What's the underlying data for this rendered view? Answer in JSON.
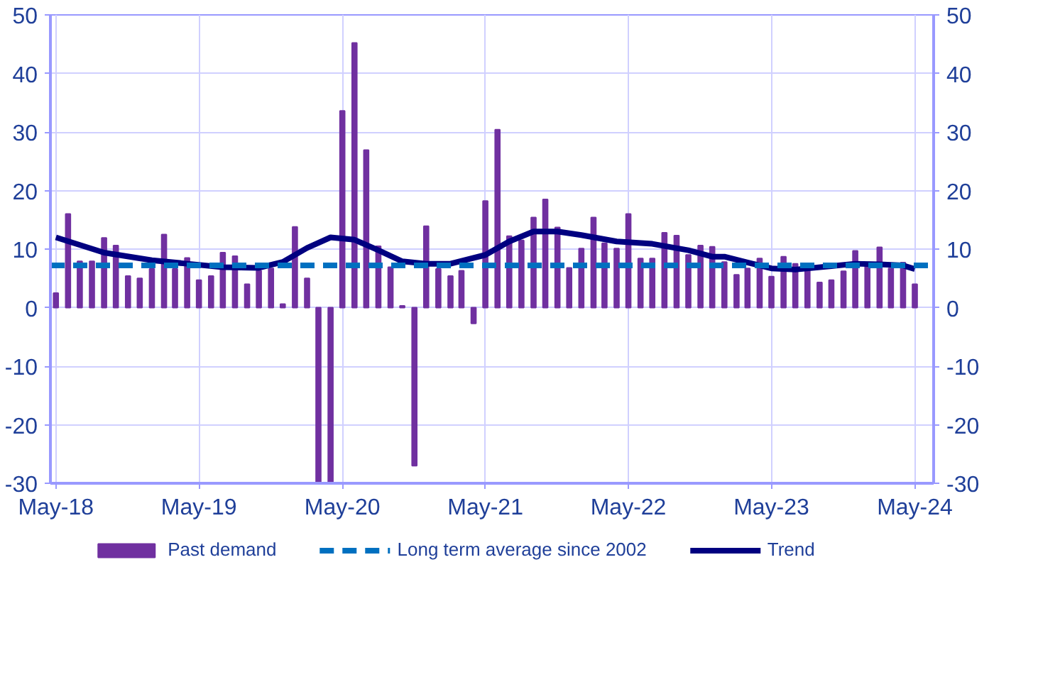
{
  "chart_data": {
    "type": "bar",
    "x": [
      "2018-05",
      "2018-06",
      "2018-07",
      "2018-08",
      "2018-09",
      "2018-10",
      "2018-11",
      "2018-12",
      "2019-01",
      "2019-02",
      "2019-03",
      "2019-04",
      "2019-05",
      "2019-06",
      "2019-07",
      "2019-08",
      "2019-09",
      "2019-10",
      "2019-11",
      "2019-12",
      "2020-01",
      "2020-02",
      "2020-03",
      "2020-04",
      "2020-05",
      "2020-06",
      "2020-07",
      "2020-08",
      "2020-09",
      "2020-10",
      "2020-11",
      "2020-12",
      "2021-01",
      "2021-02",
      "2021-03",
      "2021-04",
      "2021-05",
      "2021-06",
      "2021-07",
      "2021-08",
      "2021-09",
      "2021-10",
      "2021-11",
      "2021-12",
      "2022-01",
      "2022-02",
      "2022-03",
      "2022-04",
      "2022-05",
      "2022-06",
      "2022-07",
      "2022-08",
      "2022-09",
      "2022-10",
      "2022-11",
      "2022-12",
      "2023-01",
      "2023-02",
      "2023-03",
      "2023-04",
      "2023-05",
      "2023-06",
      "2023-07",
      "2023-08",
      "2023-09",
      "2023-10",
      "2023-11",
      "2023-12",
      "2024-01",
      "2024-02",
      "2024-03",
      "2024-04",
      "2024-05"
    ],
    "series": [
      {
        "name": "Past demand",
        "color": "#7030a0",
        "values": [
          2.5,
          16,
          7.9,
          7.9,
          11.9,
          10.6,
          5.4,
          5,
          6.6,
          12.5,
          6.6,
          8.5,
          4.7,
          5.4,
          9.4,
          8.8,
          4,
          6.3,
          6.7,
          0.6,
          13.8,
          5,
          -30,
          -30,
          33.6,
          45.2,
          26.9,
          10.5,
          6.9,
          0.3,
          -27,
          13.9,
          6.6,
          5.4,
          6.3,
          -2.7,
          18.2,
          30.4,
          12.2,
          11.5,
          15.4,
          18.5,
          13.7,
          6.8,
          10.1,
          15.4,
          11,
          10.1,
          16,
          8.4,
          8.4,
          12.8,
          12.3,
          9,
          10.6,
          10.4,
          7.8,
          5.6,
          6.7,
          8.4,
          5.3,
          8.7,
          7.5,
          6.3,
          4.3,
          4.7,
          6.2,
          9.7,
          7.5,
          10.3,
          6.7,
          7.7,
          4
        ]
      },
      {
        "name": "Trend",
        "type": "line",
        "color": "#000080",
        "x": [
          "2018-05",
          "2018-09",
          "2019-01",
          "2019-04",
          "2019-07",
          "2019-10",
          "2019-12",
          "2020-02",
          "2020-04",
          "2020-06",
          "2020-08",
          "2020-10",
          "2020-12",
          "2021-02",
          "2021-05",
          "2021-07",
          "2021-09",
          "2021-11",
          "2022-01",
          "2022-04",
          "2022-07",
          "2022-10",
          "2022-12",
          "2023-01",
          "2023-03",
          "2023-05",
          "2023-07",
          "2023-10",
          "2023-12",
          "2024-02",
          "2024-04",
          "2024-05"
        ],
        "values": [
          12,
          9.4,
          8.1,
          7.5,
          6.9,
          6.8,
          7.8,
          10.2,
          12,
          11.6,
          9.8,
          7.9,
          7.5,
          7.5,
          9,
          11.3,
          13,
          13,
          12.4,
          11.3,
          10.9,
          9.8,
          8.7,
          8.7,
          7.7,
          6.7,
          6.5,
          7.1,
          7.5,
          7.4,
          7.2,
          6.6
        ]
      }
    ],
    "ref_lines": [
      {
        "axis": "y",
        "value": 7.2,
        "label": "Long term average since 2002",
        "color": "#0070c0",
        "line_style": "dashed"
      }
    ],
    "xlim": [
      "2018-04-17",
      "2024-06-18"
    ],
    "xticks": [
      {
        "value": "2018-05",
        "label": "May-18"
      },
      {
        "value": "2019-05",
        "label": "May-19"
      },
      {
        "value": "2020-05",
        "label": "May-20"
      },
      {
        "value": "2021-05",
        "label": "May-21"
      },
      {
        "value": "2022-05",
        "label": "May-22"
      },
      {
        "value": "2023-05",
        "label": "May-23"
      },
      {
        "value": "2024-05",
        "label": "May-24"
      }
    ],
    "ylim": [
      -30,
      50
    ],
    "yticks": [
      -30,
      -20,
      -10,
      0,
      10,
      20,
      30,
      40,
      50
    ],
    "y2lim": [
      -30,
      50
    ],
    "y2ticks": [
      -30,
      -20,
      -10,
      0,
      10,
      20,
      30,
      40,
      50
    ],
    "grid": true,
    "legend": "bottom"
  }
}
